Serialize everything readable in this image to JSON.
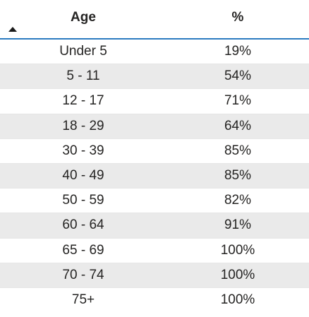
{
  "table": {
    "columns": {
      "age": "Age",
      "percent": "%"
    },
    "sort_icon": "sort-ascending-icon",
    "rows": [
      {
        "age": "Under 5",
        "percent": "19%"
      },
      {
        "age": "5 - 11",
        "percent": "54%"
      },
      {
        "age": "12 - 17",
        "percent": "71%"
      },
      {
        "age": "18 - 29",
        "percent": "64%"
      },
      {
        "age": "30 - 39",
        "percent": "85%"
      },
      {
        "age": "40 - 49",
        "percent": "85%"
      },
      {
        "age": "50 - 59",
        "percent": "82%"
      },
      {
        "age": "60 - 64",
        "percent": "91%"
      },
      {
        "age": "65 - 69",
        "percent": "100%"
      },
      {
        "age": "70 - 74",
        "percent": "100%"
      },
      {
        "age": "75+",
        "percent": "100%"
      }
    ]
  },
  "colors": {
    "header_border": "#2b7bc0",
    "alt_row": "#eaeaea",
    "text": "#252423"
  }
}
